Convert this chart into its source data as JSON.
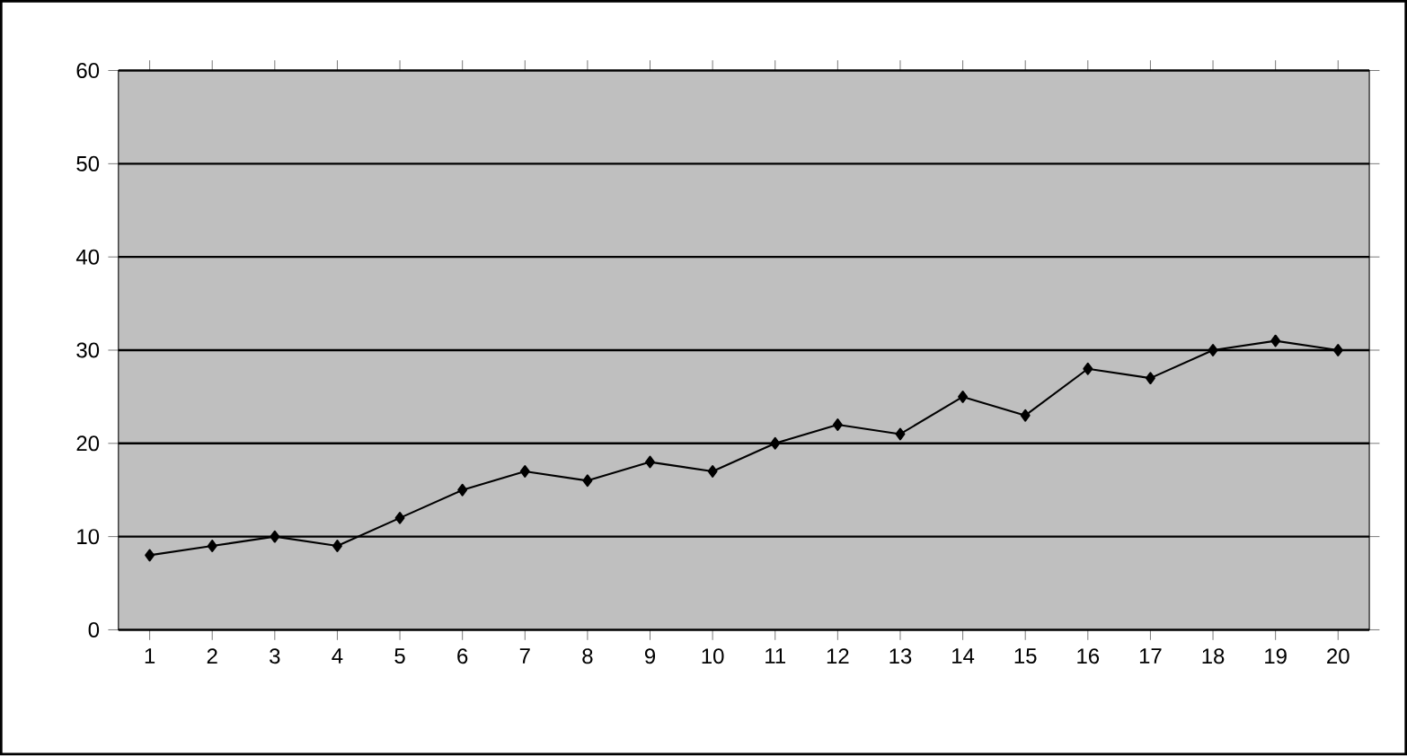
{
  "chart_data": {
    "type": "line",
    "categories": [
      "1",
      "2",
      "3",
      "4",
      "5",
      "6",
      "7",
      "8",
      "9",
      "10",
      "11",
      "12",
      "13",
      "14",
      "15",
      "16",
      "17",
      "18",
      "19",
      "20"
    ],
    "series": [
      {
        "color": "#000000",
        "values": [
          8,
          9,
          10,
          9,
          12,
          15,
          17,
          16,
          18,
          17,
          20,
          22,
          21,
          25,
          23,
          28,
          27,
          30,
          31,
          30
        ]
      }
    ],
    "ylim": [
      0,
      60
    ],
    "yticks": [
      0,
      10,
      20,
      30,
      40,
      50,
      60
    ],
    "grid": "y",
    "marker": "diamond",
    "line_style": "solid"
  }
}
